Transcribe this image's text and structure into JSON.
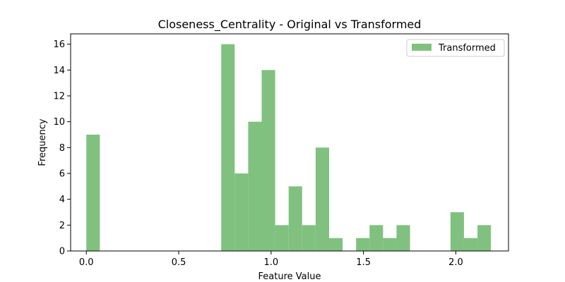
{
  "chart_data": {
    "type": "bar",
    "title": "Closeness_Centrality - Original vs Transformed",
    "xlabel": "Feature Value",
    "ylabel": "Frequency",
    "xlim": [
      -0.085,
      2.285
    ],
    "ylim": [
      0,
      16.8
    ],
    "x_ticks": [
      {
        "value": 0.0,
        "label": "0.0"
      },
      {
        "value": 0.5,
        "label": "0.5"
      },
      {
        "value": 1.0,
        "label": "1.0"
      },
      {
        "value": 1.5,
        "label": "1.5"
      },
      {
        "value": 2.0,
        "label": "2.0"
      }
    ],
    "y_ticks": [
      {
        "value": 0,
        "label": "0"
      },
      {
        "value": 2,
        "label": "2"
      },
      {
        "value": 4,
        "label": "4"
      },
      {
        "value": 6,
        "label": "6"
      },
      {
        "value": 8,
        "label": "8"
      },
      {
        "value": 10,
        "label": "10"
      },
      {
        "value": 12,
        "label": "12"
      },
      {
        "value": 14,
        "label": "14"
      },
      {
        "value": 16,
        "label": "16"
      }
    ],
    "grid": false,
    "legend_position": "top-right",
    "series": [
      {
        "name": "Transformed",
        "color": "#81c17f",
        "bin_width": 0.073,
        "bins": [
          {
            "x": 0.0,
            "count": 9
          },
          {
            "x": 0.73,
            "count": 16
          },
          {
            "x": 0.803,
            "count": 6
          },
          {
            "x": 0.876,
            "count": 10
          },
          {
            "x": 0.949,
            "count": 14
          },
          {
            "x": 1.022,
            "count": 2
          },
          {
            "x": 1.095,
            "count": 5
          },
          {
            "x": 1.168,
            "count": 2
          },
          {
            "x": 1.241,
            "count": 8
          },
          {
            "x": 1.314,
            "count": 1
          },
          {
            "x": 1.46,
            "count": 1
          },
          {
            "x": 1.533,
            "count": 2
          },
          {
            "x": 1.606,
            "count": 1
          },
          {
            "x": 1.679,
            "count": 2
          },
          {
            "x": 1.971,
            "count": 3
          },
          {
            "x": 2.044,
            "count": 1
          },
          {
            "x": 2.117,
            "count": 2
          }
        ]
      }
    ]
  }
}
